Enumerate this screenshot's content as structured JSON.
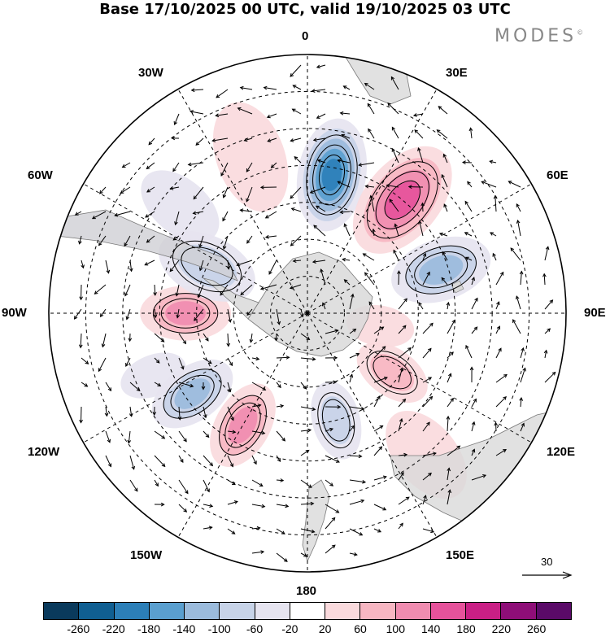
{
  "title": "Base 17/10/2025 00 UTC, valid 19/10/2025 03 UTC",
  "brand": "MODES",
  "brand_mark": "©",
  "lon_labels": {
    "n0": "0",
    "e30": "30E",
    "e60": "60E",
    "e90": "90E",
    "e120": "120E",
    "e150": "150E",
    "s180": "180",
    "w150": "150W",
    "w120": "120W",
    "w90": "90W",
    "w60": "60W",
    "w30": "30W"
  },
  "reference_vector": "30",
  "colorbar": {
    "colors": [
      "#0a3a5c",
      "#105f92",
      "#2c7fb8",
      "#5a9fcf",
      "#9bbbdc",
      "#c7d3e8",
      "#e6e4f0",
      "#ffffff",
      "#fadadd",
      "#f7b6c2",
      "#f08cb0",
      "#e6529b",
      "#c91f85",
      "#8e0e78",
      "#5a0a68"
    ],
    "ticks": [
      "-260",
      "-220",
      "-180",
      "-140",
      "-100",
      "-60",
      "-20",
      "20",
      "60",
      "100",
      "140",
      "180",
      "220",
      "260"
    ]
  },
  "anomaly_blobs": [
    {
      "lat": -52,
      "lon": 10,
      "value": -230,
      "size": 1.0
    },
    {
      "lat": -50,
      "lon": 40,
      "value": 190,
      "size": 1.1
    },
    {
      "lat": -52,
      "lon": 72,
      "value": -150,
      "size": 0.9
    },
    {
      "lat": -62,
      "lon": 125,
      "value": 110,
      "size": 0.7
    },
    {
      "lat": -60,
      "lon": 165,
      "value": -110,
      "size": 0.7
    },
    {
      "lat": -55,
      "lon": -150,
      "value": 150,
      "size": 0.8
    },
    {
      "lat": -52,
      "lon": -125,
      "value": -150,
      "size": 0.8
    },
    {
      "lat": -45,
      "lon": -112,
      "value": -70,
      "size": 0.6
    },
    {
      "lat": -57,
      "lon": -90,
      "value": 130,
      "size": 0.8
    },
    {
      "lat": -60,
      "lon": -65,
      "value": -110,
      "size": 0.9
    },
    {
      "lat": -45,
      "lon": -20,
      "value": 60,
      "size": 1.0
    },
    {
      "lat": -45,
      "lon": -50,
      "value": -40,
      "size": 0.8
    },
    {
      "lat": -70,
      "lon": 100,
      "value": 60,
      "size": 0.6
    },
    {
      "lat": -40,
      "lon": 140,
      "value": 50,
      "size": 0.9
    }
  ]
}
